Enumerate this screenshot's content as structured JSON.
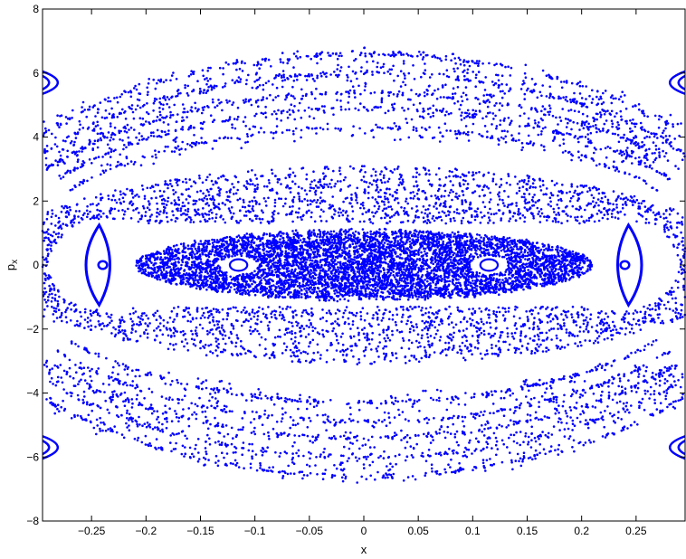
{
  "chart_data": {
    "type": "scatter",
    "title": "",
    "xlabel": "x",
    "ylabel": "p",
    "ylabel_subscript": "x",
    "xlim": [
      -0.295,
      0.295
    ],
    "ylim": [
      -8,
      8
    ],
    "xticks": [
      -0.25,
      -0.2,
      -0.15,
      -0.1,
      -0.05,
      0,
      0.05,
      0.1,
      0.15,
      0.2,
      0.25
    ],
    "xtick_labels": [
      "−0.25",
      "−0.2",
      "−0.15",
      "−0.1",
      "−0.05",
      "0",
      "0.05",
      "0.1",
      "0.15",
      "0.2",
      "0.25"
    ],
    "yticks": [
      -8,
      -6,
      -4,
      -2,
      0,
      2,
      4,
      6,
      8
    ],
    "ytick_labels": [
      "−8",
      "−6",
      "−4",
      "−2",
      "0",
      "2",
      "4",
      "6",
      "8"
    ],
    "grid": false,
    "legend": "none",
    "marker_color": "#0000ff",
    "structures": {
      "central_chaotic_band": {
        "xc": 0,
        "yc": 0,
        "a": 0.21,
        "b": 1.0
      },
      "inner_islands": [
        {
          "xc": -0.115,
          "yc": 0,
          "a": 0.008,
          "b": 0.18
        },
        {
          "xc": 0.115,
          "yc": 0,
          "a": 0.008,
          "b": 0.18
        }
      ],
      "side_islands": [
        {
          "xc": -0.232,
          "yc": 0,
          "a": 0.022,
          "b": 1.25
        },
        {
          "xc": 0.232,
          "yc": 0,
          "a": 0.022,
          "b": 1.25
        }
      ],
      "middle_chaotic_ring": {
        "xc": 0,
        "yc": 0,
        "a": 0.3,
        "b_inner": 1.3,
        "b_outer": 3.1
      },
      "outer_chaotic_ring": {
        "xc": 0,
        "yc": 0,
        "a": 0.31,
        "b_inner": 3.9,
        "b_outer": 6.8
      },
      "corner_islands": [
        {
          "xc": -0.295,
          "yc": 5.7,
          "a": 0.02,
          "b": 0.35
        },
        {
          "xc": 0.295,
          "yc": 5.7,
          "a": 0.02,
          "b": 0.35
        },
        {
          "xc": -0.295,
          "yc": -5.7,
          "a": 0.02,
          "b": 0.35
        },
        {
          "xc": 0.295,
          "yc": -5.7,
          "a": 0.02,
          "b": 0.35
        }
      ]
    }
  }
}
